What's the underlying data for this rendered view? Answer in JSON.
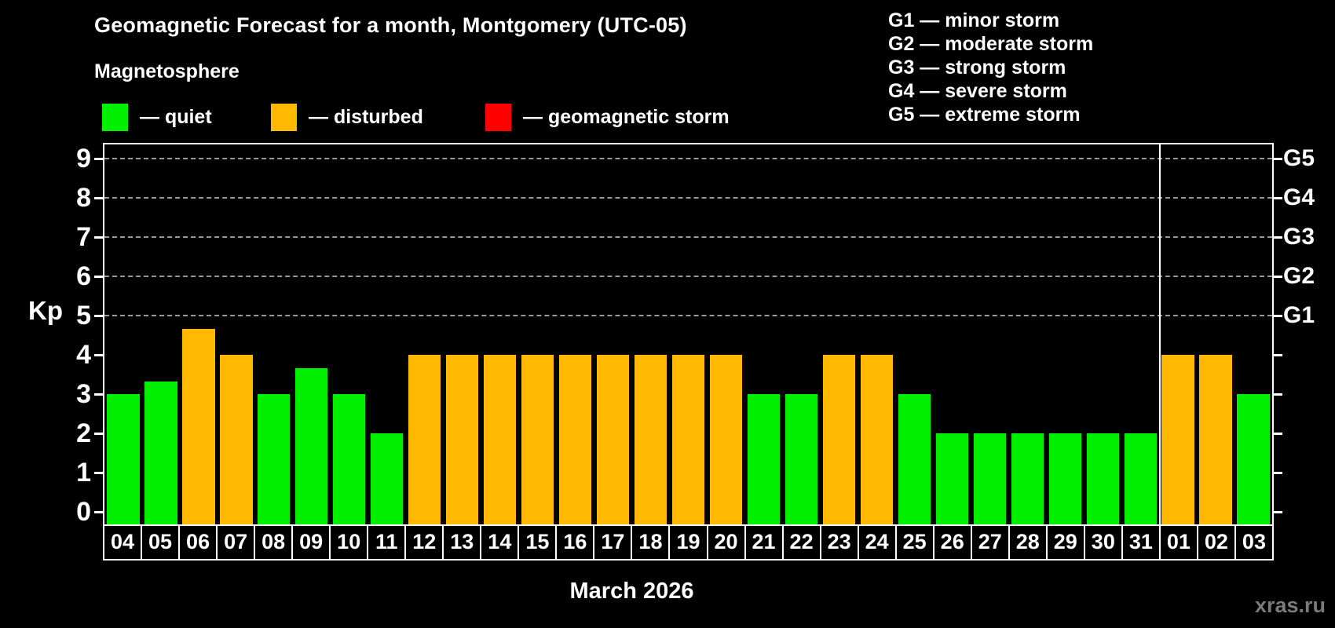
{
  "title": "Geomagnetic Forecast for a month, Montgomery (UTC-05)",
  "subtitle": "Magnetosphere",
  "legend": {
    "items": [
      {
        "key": "quiet",
        "label": "— quiet",
        "color": "#00f000"
      },
      {
        "key": "disturbed",
        "label": "— disturbed",
        "color": "#ffb900"
      },
      {
        "key": "storm",
        "label": "— geomagnetic storm",
        "color": "#ff0000"
      }
    ]
  },
  "storm_scale_legend": [
    "G1 — minor storm",
    "G2 — moderate storm",
    "G3 — strong storm",
    "G4 — severe storm",
    "G5 — extreme storm"
  ],
  "watermark": "xras.ru",
  "chart_data": {
    "type": "bar",
    "title": "Geomagnetic Forecast for a month, Montgomery (UTC-05)",
    "ylabel": "Kp",
    "xlabel": "March 2026",
    "month_label": "March 2026",
    "ylim": [
      0,
      9
    ],
    "y_ticks": [
      0,
      1,
      2,
      3,
      4,
      5,
      6,
      7,
      8,
      9
    ],
    "gridlines": [
      5,
      6,
      7,
      8,
      9
    ],
    "grid": "horizontal dashed lines at Kp 5-9 only",
    "legend_position": "top-left",
    "right_axis_labels": [
      {
        "value": 5,
        "label": "G1"
      },
      {
        "value": 6,
        "label": "G2"
      },
      {
        "value": 7,
        "label": "G3"
      },
      {
        "value": 8,
        "label": "G4"
      },
      {
        "value": 9,
        "label": "G5"
      }
    ],
    "categories": [
      "04",
      "05",
      "06",
      "07",
      "08",
      "09",
      "10",
      "11",
      "12",
      "13",
      "14",
      "15",
      "16",
      "17",
      "18",
      "19",
      "20",
      "21",
      "22",
      "23",
      "24",
      "25",
      "26",
      "27",
      "28",
      "29",
      "30",
      "31",
      "01",
      "02",
      "03"
    ],
    "values": [
      3,
      3.33,
      4.67,
      4,
      3,
      3.67,
      3,
      2,
      4,
      4,
      4,
      4,
      4,
      4,
      4,
      4,
      4,
      3,
      3,
      4,
      4,
      3,
      2,
      2,
      2,
      2,
      2,
      2,
      4,
      4,
      3
    ],
    "statuses": [
      "quiet",
      "quiet",
      "disturbed",
      "disturbed",
      "quiet",
      "quiet",
      "quiet",
      "quiet",
      "disturbed",
      "disturbed",
      "disturbed",
      "disturbed",
      "disturbed",
      "disturbed",
      "disturbed",
      "disturbed",
      "disturbed",
      "quiet",
      "quiet",
      "disturbed",
      "disturbed",
      "quiet",
      "quiet",
      "quiet",
      "quiet",
      "quiet",
      "quiet",
      "quiet",
      "disturbed",
      "disturbed",
      "quiet"
    ],
    "month_separator_after_index": 27
  }
}
